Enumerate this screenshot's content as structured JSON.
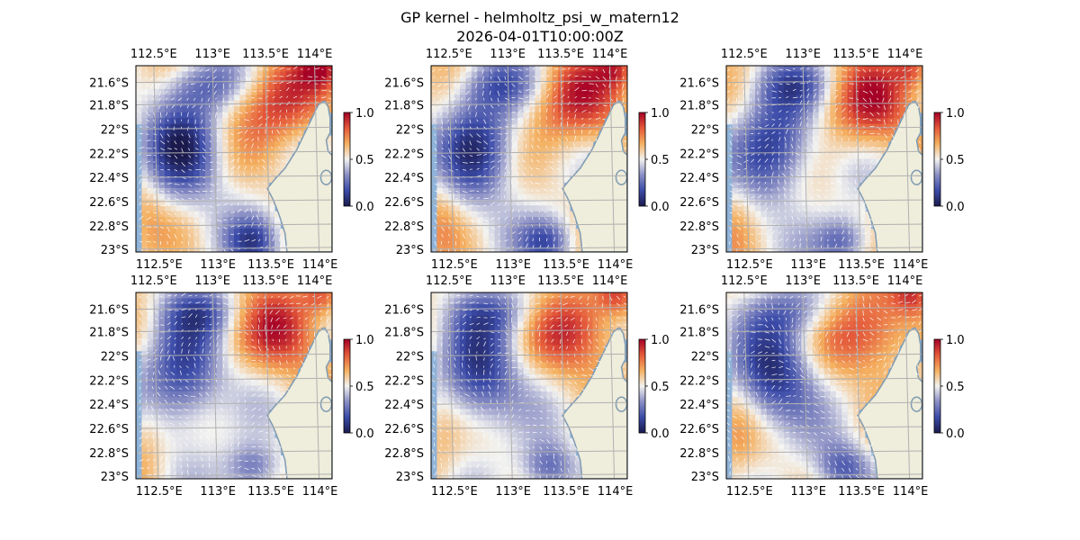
{
  "figure": {
    "title_line1": "GP kernel - helmholtz_psi_w_matern12",
    "title_line2": "2026-04-01T10:00:00Z"
  },
  "axes": {
    "lon_ticks": [
      "112.5°E",
      "113°E",
      "113.5°E",
      "114°E"
    ],
    "lat_ticks": [
      "21.6°S",
      "21.8°S",
      "22°S",
      "22.2°S",
      "22.4°S",
      "22.6°S",
      "22.8°S",
      "23°S"
    ]
  },
  "colorbar": {
    "ticks": [
      "0.0",
      "0.5",
      "1.0"
    ],
    "colors": [
      "#1a1a4d",
      "#3b4ba8",
      "#8a8fc4",
      "#f2f2f0",
      "#f4b060",
      "#e4583a",
      "#a50026"
    ]
  },
  "panels": [
    {
      "id": 1
    },
    {
      "id": 2
    },
    {
      "id": 3
    },
    {
      "id": 4
    },
    {
      "id": 5
    },
    {
      "id": 6
    }
  ],
  "colors": {
    "land": "#efeddb",
    "coast": "#7f9bb3",
    "grid": "#b0b0b0",
    "ocean_edge": "#8fb3d9"
  }
}
